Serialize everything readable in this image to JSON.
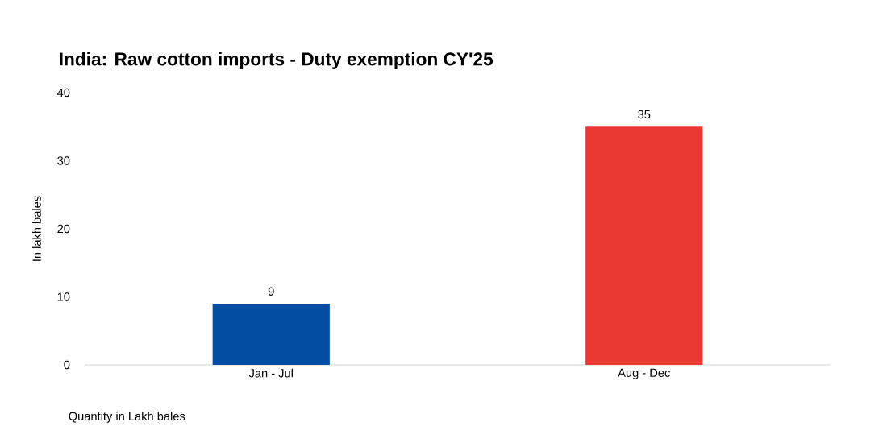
{
  "chart_data": {
    "type": "bar",
    "title": "India: Raw cotton imports - Duty exemption CY'25",
    "ylabel": "In lakh bales",
    "categories": [
      "Jan - Jul",
      "Aug - Dec"
    ],
    "values": [
      9,
      35
    ],
    "colors": [
      "#034ea2",
      "#ec3833"
    ],
    "ylim": [
      0,
      40
    ],
    "yticks": [
      0,
      10,
      20,
      30,
      40
    ],
    "data_labels": true,
    "annotations": [
      "Quantity in Lakh bales"
    ]
  }
}
